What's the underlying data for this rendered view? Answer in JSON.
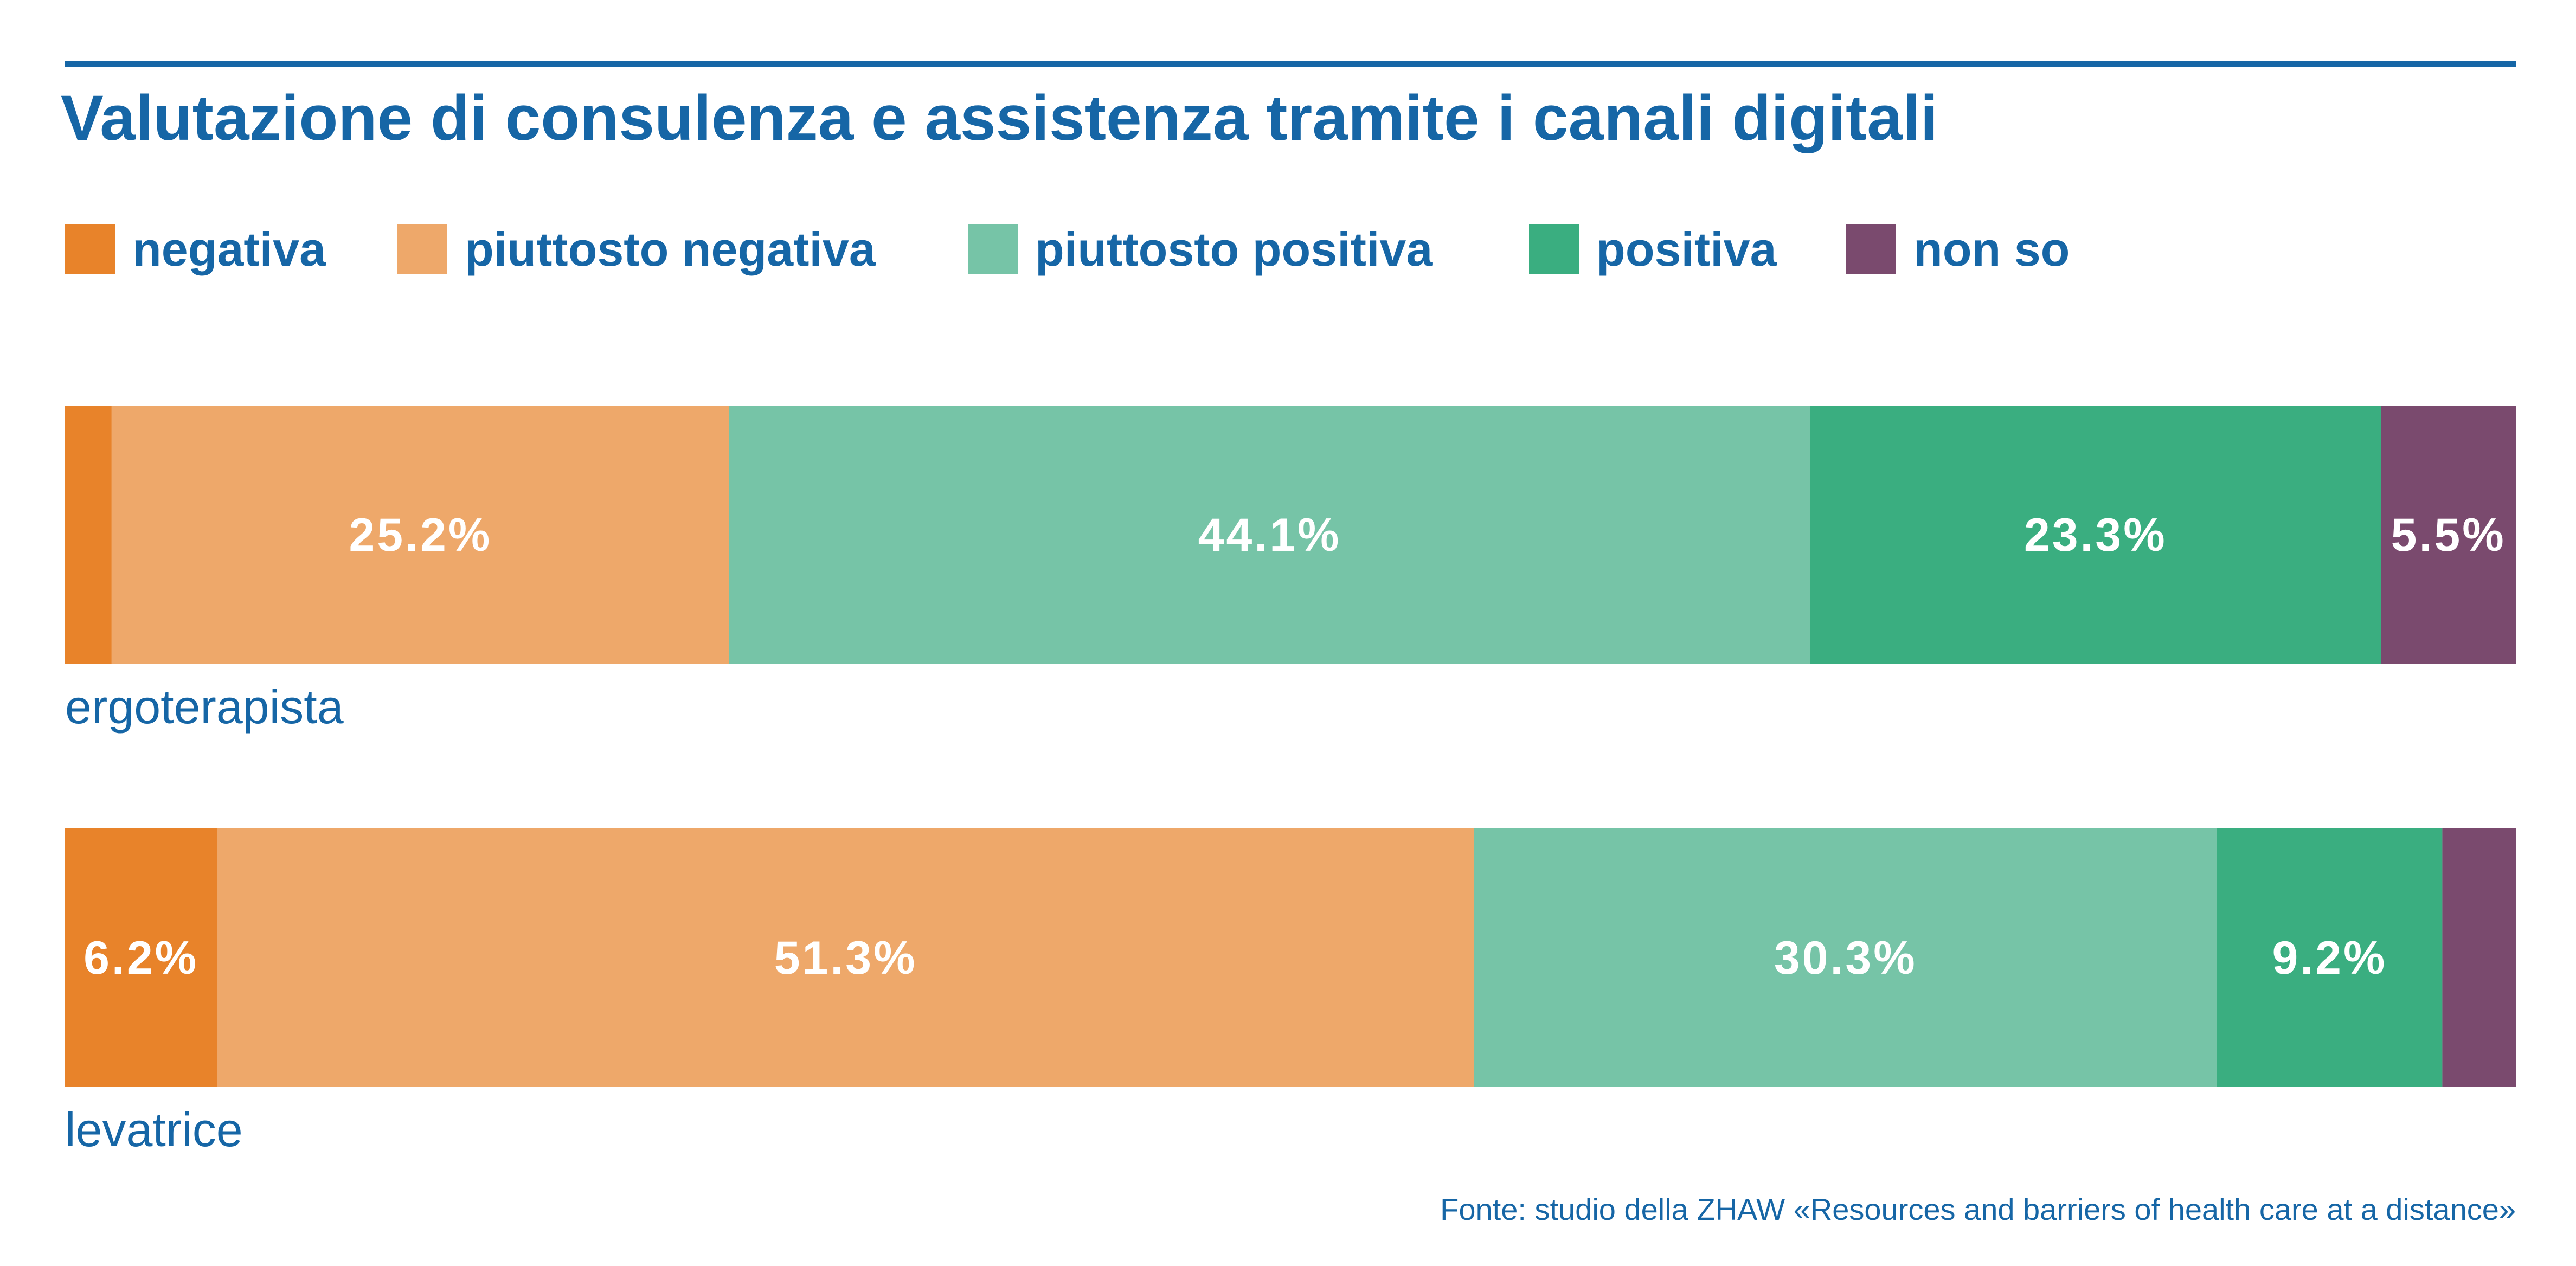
{
  "chart_data": {
    "type": "bar",
    "orientation": "horizontal",
    "stacked": true,
    "percent_stacked": true,
    "title": "Valutazione di consulenza e assistenza tramite i canali digitali",
    "categories": [
      "ergoterapista",
      "levatrice"
    ],
    "series": [
      {
        "name": "negativa",
        "color": "#e8832a",
        "values": [
          1.9,
          6.2
        ],
        "labels": [
          "",
          "6.2%"
        ]
      },
      {
        "name": "piuttosto negativa",
        "color": "#eea86a",
        "values": [
          25.2,
          51.3
        ],
        "labels": [
          "25.2%",
          "51.3%"
        ]
      },
      {
        "name": "piuttosto positiva",
        "color": "#76c4a7",
        "values": [
          44.1,
          30.3
        ],
        "labels": [
          "44.1%",
          "30.3%"
        ]
      },
      {
        "name": "positiva",
        "color": "#3aae80",
        "values": [
          23.3,
          9.2
        ],
        "labels": [
          "23.3%",
          "9.2%"
        ]
      },
      {
        "name": "non so",
        "color": "#7a4a6e",
        "values": [
          5.5,
          3.0
        ],
        "labels": [
          "5.5%",
          ""
        ]
      }
    ],
    "xlim": [
      0,
      100
    ],
    "grid": false,
    "legend": "top-left",
    "source": "Fonte: studio della ZHAW «Resources and barriers of health care at a distance»",
    "colors": {
      "text": "#1666a6",
      "rule": "#1666a6",
      "value_label": "#ffffff"
    }
  }
}
